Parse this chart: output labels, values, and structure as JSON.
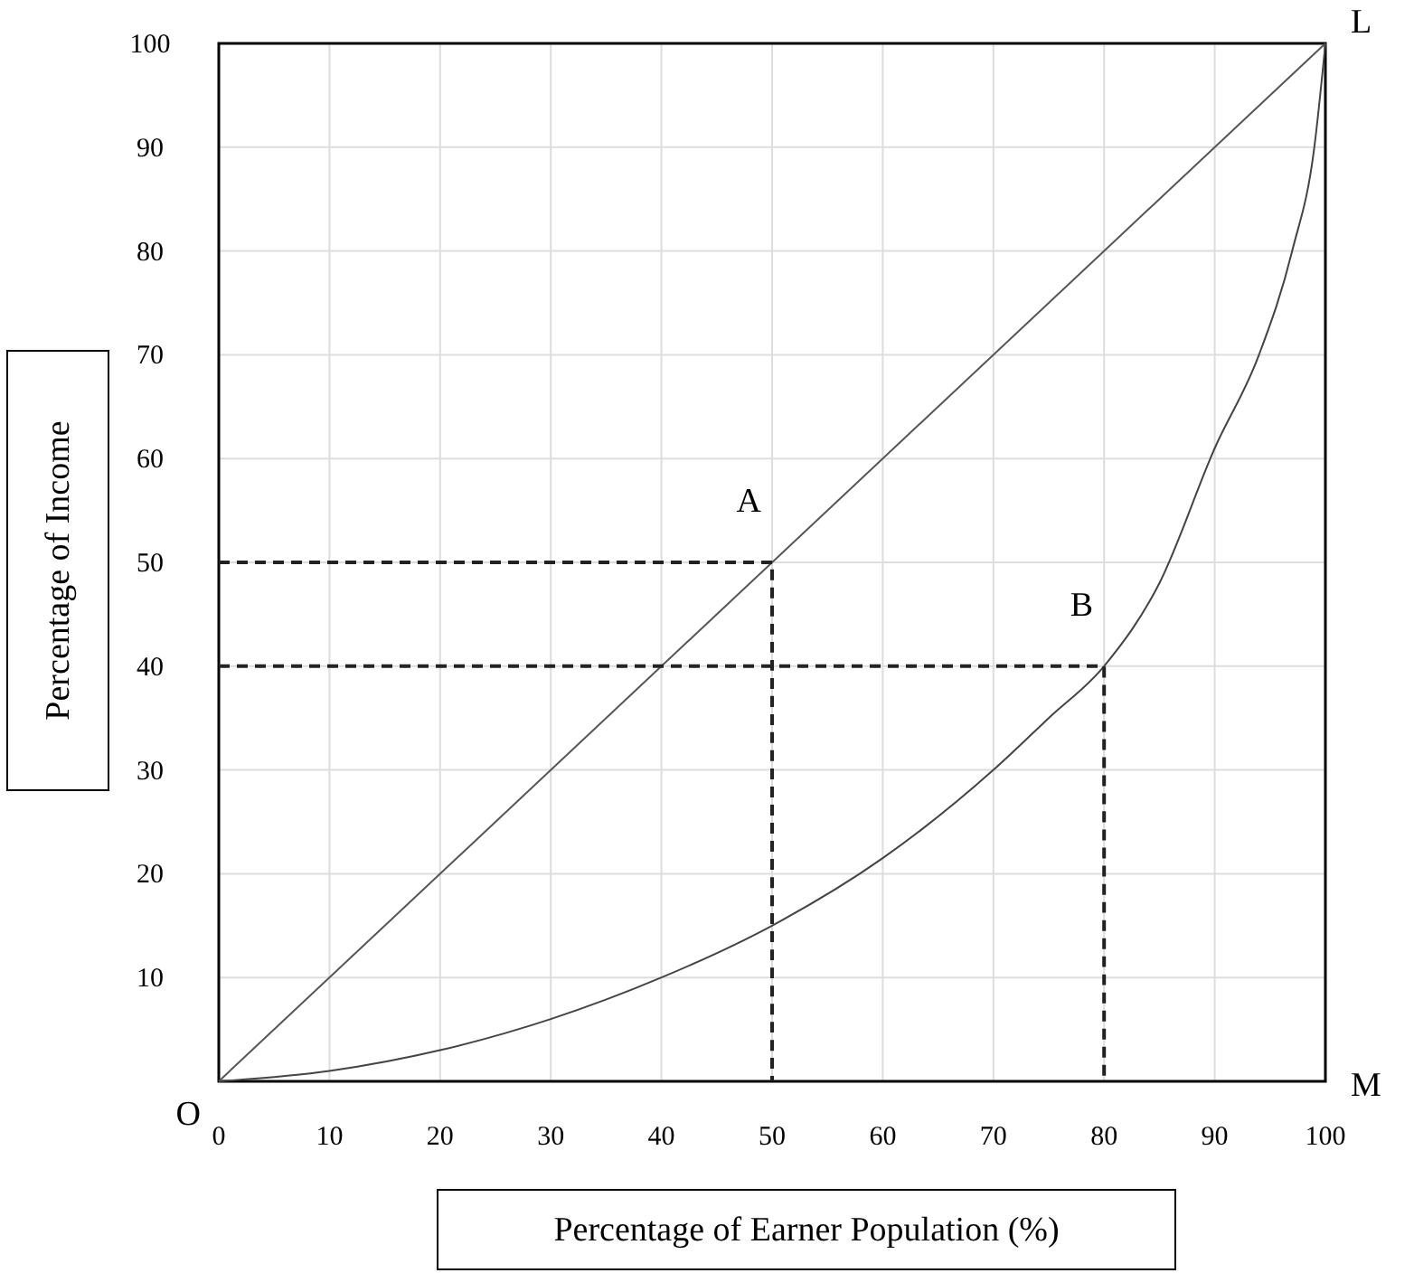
{
  "chart_data": {
    "type": "line",
    "xlabel": "Percentage of Earner Population (%)",
    "ylabel": "Percentage of Income",
    "xlim": [
      0,
      100
    ],
    "ylim": [
      0,
      100
    ],
    "xticks": [
      0,
      10,
      20,
      30,
      40,
      50,
      60,
      70,
      80,
      90,
      100
    ],
    "yticks": [
      10,
      20,
      30,
      40,
      50,
      60,
      70,
      80,
      90,
      100
    ],
    "grid": true,
    "marker": "none",
    "series": [
      {
        "color": "#555555",
        "line_style": "solid",
        "x": [
          0,
          100
        ],
        "values": [
          0,
          100
        ]
      },
      {
        "color": "#444444",
        "line_style": "solid",
        "x": [
          0,
          10,
          20,
          30,
          40,
          50,
          60,
          70,
          75,
          80,
          85,
          90,
          94,
          97,
          99,
          100
        ],
        "values": [
          0,
          1,
          3,
          6,
          10,
          15,
          21.5,
          30,
          35,
          40,
          48,
          61,
          70,
          80,
          90,
          100
        ]
      },
      {
        "color": "#222222",
        "line_style": "dashed",
        "x": [
          0,
          50,
          50
        ],
        "values": [
          50,
          50,
          0
        ]
      },
      {
        "color": "#222222",
        "line_style": "dashed",
        "x": [
          0,
          80,
          80
        ],
        "values": [
          40,
          40,
          0
        ]
      }
    ],
    "annotations": [
      {
        "text": "A",
        "x": 50,
        "y": 50
      },
      {
        "text": "B",
        "x": 80,
        "y": 40
      },
      {
        "text": "L",
        "x": 100,
        "y": 100
      },
      "M",
      {
        "text": "O",
        "x": 0,
        "y": 0
      }
    ]
  }
}
